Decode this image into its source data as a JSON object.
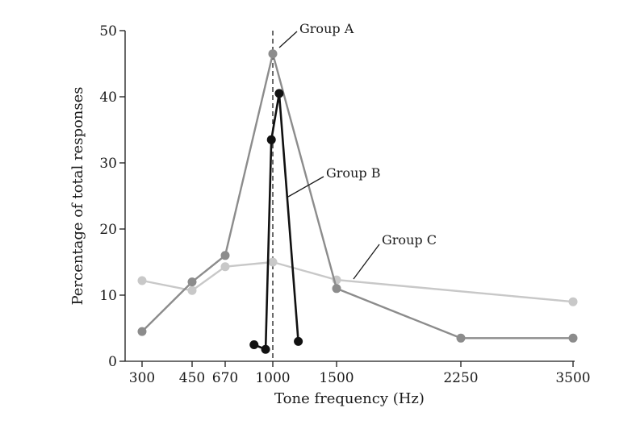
{
  "chart_data": {
    "type": "line",
    "xlabel": "Tone frequency (Hz)",
    "ylabel": "Percentage of total responses",
    "x_ticks": [
      "300",
      "450",
      "670",
      "1000",
      "1500",
      "2250",
      "3500"
    ],
    "y_ticks": [
      0,
      10,
      20,
      30,
      40,
      50
    ],
    "ylim": [
      0,
      50
    ],
    "x_scale": "categorical (tick order)",
    "reference_line": {
      "x": "1000",
      "style": "dashed"
    },
    "grid": false,
    "series": [
      {
        "name": "Group A",
        "color": "#8c8c8c",
        "points": [
          {
            "x": "300",
            "y": 4.5
          },
          {
            "x": "450",
            "y": 12
          },
          {
            "x": "670",
            "y": 16
          },
          {
            "x": "1000",
            "y": 46.5
          },
          {
            "x": "1500",
            "y": 11
          },
          {
            "x": "2250",
            "y": 3.5
          },
          {
            "x": "3500",
            "y": 3.5
          }
        ]
      },
      {
        "name": "Group B",
        "color": "#111111",
        "points": [
          {
            "x": 870,
            "y": 2.5
          },
          {
            "x": 950,
            "y": 1.8
          },
          {
            "x": 990,
            "y": 33.5
          },
          {
            "x": 1050,
            "y": 40.5
          },
          {
            "x": 1200,
            "y": 3
          }
        ]
      },
      {
        "name": "Group C",
        "color": "#c8c8c8",
        "points": [
          {
            "x": "300",
            "y": 12.2
          },
          {
            "x": "450",
            "y": 10.7
          },
          {
            "x": "670",
            "y": 14.3
          },
          {
            "x": "1000",
            "y": 15
          },
          {
            "x": "1500",
            "y": 12.3
          },
          {
            "x": "3500",
            "y": 9
          }
        ]
      }
    ]
  }
}
